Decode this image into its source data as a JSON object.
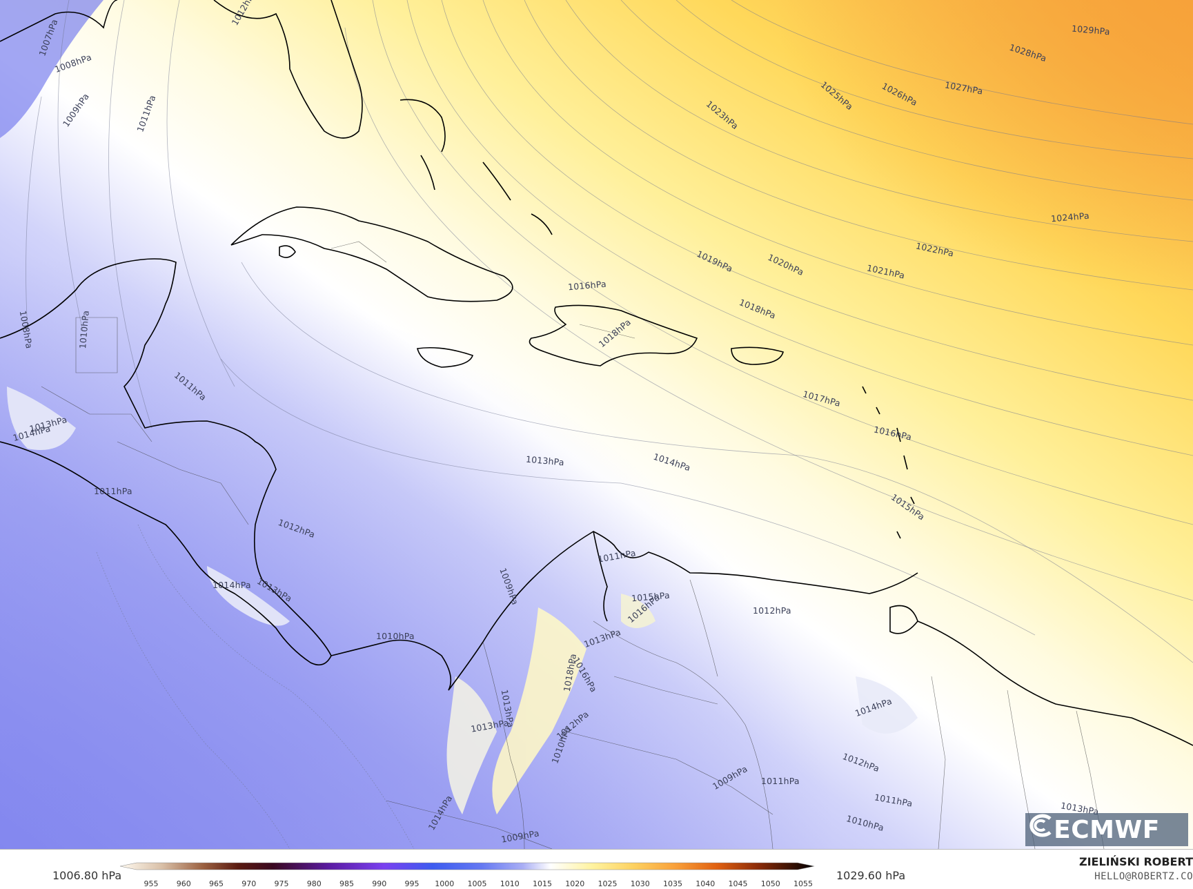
{
  "map": {
    "isobars": [
      {
        "label": "1007hPa",
        "pos": [
          72,
          55
        ],
        "rot": -70
      },
      {
        "label": "1008hPa",
        "pos": [
          108,
          92
        ],
        "rot": -20
      },
      {
        "label": "1009hPa",
        "pos": [
          112,
          160
        ],
        "rot": -55
      },
      {
        "label": "1011hPa",
        "pos": [
          214,
          165
        ],
        "rot": -70
      },
      {
        "label": "1012hPa",
        "pos": [
          355,
          12
        ],
        "rot": -60
      },
      {
        "label": "1008hPa",
        "pos": [
          40,
          478
        ],
        "rot": 80
      },
      {
        "label": "1010hPa",
        "pos": [
          124,
          478
        ],
        "rot": -85
      },
      {
        "label": "1011hPa",
        "pos": [
          278,
          560
        ],
        "rot": 40
      },
      {
        "label": "1013hPa",
        "pos": [
          72,
          615
        ],
        "rot": -15
      },
      {
        "label": "1014hPa",
        "pos": [
          48,
          628
        ],
        "rot": -15
      },
      {
        "label": "1011hPa",
        "pos": [
          166,
          712
        ],
        "rot": 0
      },
      {
        "label": "1012hPa",
        "pos": [
          432,
          766
        ],
        "rot": 20
      },
      {
        "label": "1013hPa",
        "pos": [
          792,
          668
        ],
        "rot": 5
      },
      {
        "label": "1014hPa",
        "pos": [
          976,
          670
        ],
        "rot": 18
      },
      {
        "label": "1016hPa",
        "pos": [
          853,
          414
        ],
        "rot": -5
      },
      {
        "label": "1018hPa",
        "pos": [
          893,
          483
        ],
        "rot": -40
      },
      {
        "label": "1019hPa",
        "pos": [
          1038,
          379
        ],
        "rot": 25
      },
      {
        "label": "1018hPa",
        "pos": [
          1100,
          448
        ],
        "rot": 22
      },
      {
        "label": "1020hPa",
        "pos": [
          1141,
          384
        ],
        "rot": 25
      },
      {
        "label": "1021hPa",
        "pos": [
          1286,
          394
        ],
        "rot": 12
      },
      {
        "label": "1022hPa",
        "pos": [
          1357,
          362
        ],
        "rot": 12
      },
      {
        "label": "1024hPa",
        "pos": [
          1553,
          315
        ],
        "rot": -5
      },
      {
        "label": "1023hPa",
        "pos": [
          1049,
          167
        ],
        "rot": 40
      },
      {
        "label": "1025hPa",
        "pos": [
          1215,
          139
        ],
        "rot": 40
      },
      {
        "label": "1026hPa",
        "pos": [
          1306,
          137
        ],
        "rot": 28
      },
      {
        "label": "1027hPa",
        "pos": [
          1399,
          128
        ],
        "rot": 10
      },
      {
        "label": "1028hPa",
        "pos": [
          1492,
          77
        ],
        "rot": 18
      },
      {
        "label": "1029hPa",
        "pos": [
          1583,
          44
        ],
        "rot": 5
      },
      {
        "label": "1017hPa",
        "pos": [
          1193,
          578
        ],
        "rot": 15
      },
      {
        "label": "1016hPa",
        "pos": [
          1296,
          628
        ],
        "rot": 12
      },
      {
        "label": "1015hPa",
        "pos": [
          1318,
          735
        ],
        "rot": 35
      },
      {
        "label": "1011hPa",
        "pos": [
          896,
          806
        ],
        "rot": -10
      },
      {
        "label": "1009hPa",
        "pos": [
          740,
          850
        ],
        "rot": 70
      },
      {
        "label": "1015hPa",
        "pos": [
          945,
          865
        ],
        "rot": -5
      },
      {
        "label": "1016hPa",
        "pos": [
          935,
          882
        ],
        "rot": -40
      },
      {
        "label": "1012hPa",
        "pos": [
          1121,
          885
        ],
        "rot": 0
      },
      {
        "label": "1014hPa",
        "pos": [
          338,
          848
        ],
        "rot": 0
      },
      {
        "label": "1013hPa",
        "pos": [
          400,
          855
        ],
        "rot": 30
      },
      {
        "label": "1010hPa",
        "pos": [
          575,
          922
        ],
        "rot": 0
      },
      {
        "label": "1013hPa",
        "pos": [
          875,
          925
        ],
        "rot": -20
      },
      {
        "label": "1018hPa",
        "pos": [
          828,
          975
        ],
        "rot": -80
      },
      {
        "label": "1016hPa",
        "pos": [
          850,
          978
        ],
        "rot": 60
      },
      {
        "label": "1013hPa",
        "pos": [
          738,
          1027
        ],
        "rot": 80
      },
      {
        "label": "1013hPa",
        "pos": [
          712,
          1052
        ],
        "rot": -10
      },
      {
        "label": "1012hPa",
        "pos": [
          832,
          1051
        ],
        "rot": -40
      },
      {
        "label": "1010hPa",
        "pos": [
          815,
          1080
        ],
        "rot": -70
      },
      {
        "label": "1014hPa",
        "pos": [
          1268,
          1025
        ],
        "rot": -20
      },
      {
        "label": "1012hPa",
        "pos": [
          1250,
          1105
        ],
        "rot": 20
      },
      {
        "label": "1011hPa",
        "pos": [
          1133,
          1132
        ],
        "rot": 0
      },
      {
        "label": "1009hPa",
        "pos": [
          1060,
          1127
        ],
        "rot": -30
      },
      {
        "label": "1011hPa",
        "pos": [
          1297,
          1160
        ],
        "rot": 10
      },
      {
        "label": "1010hPa",
        "pos": [
          1256,
          1193
        ],
        "rot": 15
      },
      {
        "label": "1009hPa",
        "pos": [
          756,
          1212
        ],
        "rot": -10
      },
      {
        "label": "1014hPa",
        "pos": [
          640,
          1178
        ],
        "rot": -60
      },
      {
        "label": "1013hPa",
        "pos": [
          1567,
          1172
        ],
        "rot": 10
      }
    ]
  },
  "logo": {
    "text": "ECMWF"
  },
  "legend": {
    "min": "1006.80 hPa",
    "max": "1029.60 hPa",
    "ticks": [
      "955",
      "960",
      "965",
      "970",
      "975",
      "980",
      "985",
      "990",
      "995",
      "1000",
      "1005",
      "1010",
      "1015",
      "1020",
      "1025",
      "1030",
      "1035",
      "1040",
      "1045",
      "1050",
      "1055"
    ]
  },
  "credit": {
    "author": "ZIELIŃSKI ROBERT",
    "email": "HELLO@ROBERTZ.CO"
  }
}
